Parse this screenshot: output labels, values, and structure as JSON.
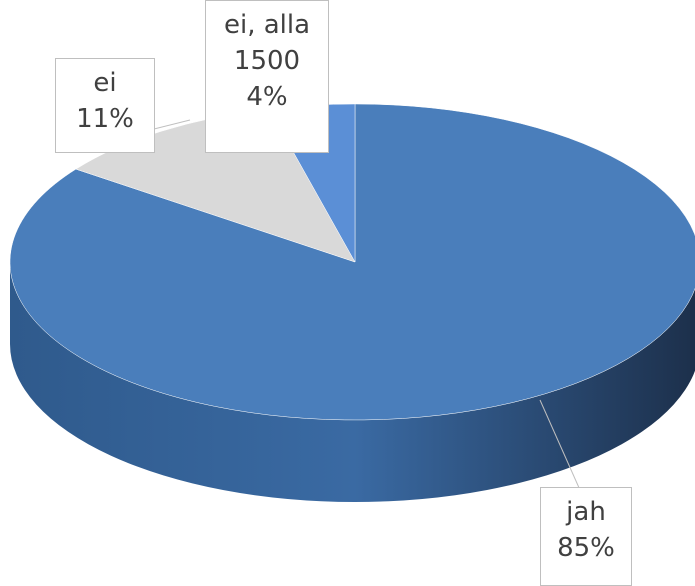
{
  "chart_data": {
    "type": "pie",
    "categories": [
      "jah",
      "ei",
      "ei, alla 1500"
    ],
    "values": [
      85,
      11,
      4
    ],
    "value_labels": [
      "85%",
      "11%",
      "4%"
    ],
    "colors": [
      "#4a7ebb",
      "#d9d9d9",
      "#5b8fd6"
    ]
  }
}
